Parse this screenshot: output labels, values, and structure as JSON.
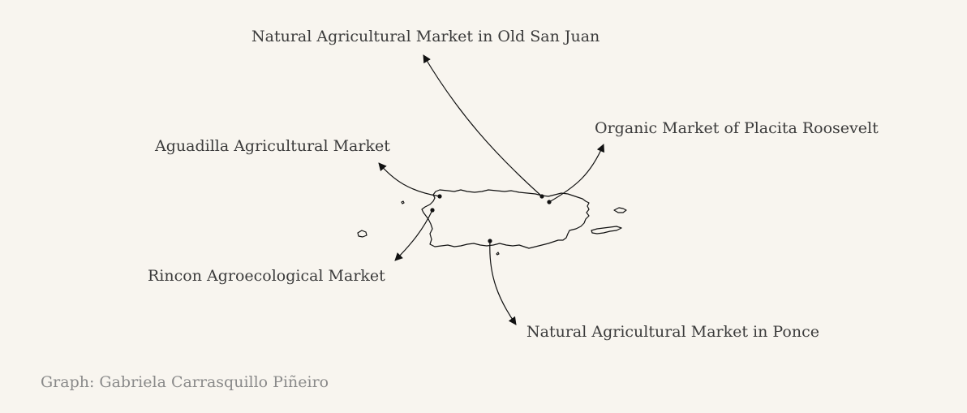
{
  "markets": [
    {
      "id": "old-san-juan",
      "name": "Natural Agricultural Market in Old San Juan"
    },
    {
      "id": "placita-roosevelt",
      "name": "Organic Market of Placita Roosevelt"
    },
    {
      "id": "aguadilla",
      "name": "Aguadilla Agricultural Market"
    },
    {
      "id": "rincon",
      "name": "Rincon Agroecological Market"
    },
    {
      "id": "ponce",
      "name": "Natural Agricultural Market in Ponce"
    }
  ],
  "credit": "Graph: Gabriela Carrasquillo Piñeiro",
  "colors": {
    "background": "#f8f5ef",
    "outline": "#111111",
    "label": "#3b3b3b",
    "credit": "#8a8a8a"
  }
}
